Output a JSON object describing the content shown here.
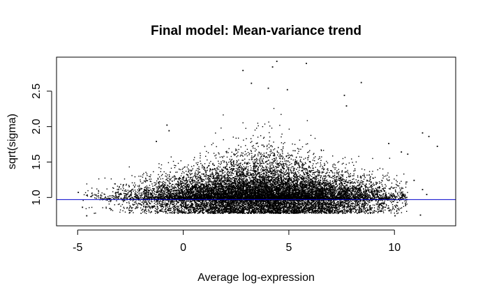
{
  "chart_data": {
    "type": "scatter",
    "title": "Final model: Mean-variance trend",
    "xlabel": "Average log-expression",
    "ylabel": "sqrt(sigma)",
    "xlim": [
      -6.0,
      12.9
    ],
    "ylim": [
      0.6,
      2.98
    ],
    "x_ticks": [
      -5,
      0,
      5,
      10
    ],
    "x_tick_labels": [
      "-5",
      "0",
      "5",
      "10"
    ],
    "y_ticks": [
      1.0,
      1.5,
      2.0,
      2.5
    ],
    "y_tick_labels": [
      "1.0",
      "1.5",
      "2.0",
      "2.5"
    ],
    "grid": false,
    "legend": "none",
    "point_color": "#000000",
    "trend_line": {
      "type": "horizontal",
      "y": 0.97,
      "color": "#0000cc"
    },
    "notable_points": [
      {
        "x": 2.8,
        "y": 2.8
      },
      {
        "x": 4.2,
        "y": 2.85
      },
      {
        "x": 4.4,
        "y": 2.93
      },
      {
        "x": 5.8,
        "y": 2.9
      },
      {
        "x": 8.4,
        "y": 2.63
      },
      {
        "x": 3.2,
        "y": 2.62
      },
      {
        "x": 4.0,
        "y": 2.55
      },
      {
        "x": 4.9,
        "y": 2.53
      },
      {
        "x": 7.6,
        "y": 2.45
      },
      {
        "x": 7.7,
        "y": 2.3
      },
      {
        "x": 11.3,
        "y": 1.92
      },
      {
        "x": 11.6,
        "y": 1.87
      },
      {
        "x": 12.0,
        "y": 1.73
      },
      {
        "x": 10.3,
        "y": 1.65
      },
      {
        "x": 10.6,
        "y": 1.62
      },
      {
        "x": 9.7,
        "y": 1.77
      },
      {
        "x": -1.3,
        "y": 1.8
      },
      {
        "x": -0.8,
        "y": 2.03
      },
      {
        "x": -0.7,
        "y": 1.95
      },
      {
        "x": 11.2,
        "y": 0.76
      },
      {
        "x": 10.9,
        "y": 1.25
      },
      {
        "x": 11.3,
        "y": 1.12
      },
      {
        "x": 11.5,
        "y": 1.05
      },
      {
        "x": -5.0,
        "y": 1.08
      },
      {
        "x": -4.8,
        "y": 0.87
      },
      {
        "x": -4.6,
        "y": 0.75
      },
      {
        "x": 10.0,
        "y": 0.75
      }
    ],
    "bulk_distribution": {
      "x_center": 3.8,
      "x_spread": 3.0,
      "x_range": [
        -4.8,
        10.6
      ],
      "y_floor": 0.78,
      "y_mode": 0.97,
      "y_typical_max": 1.6,
      "n_points": 16000
    }
  }
}
